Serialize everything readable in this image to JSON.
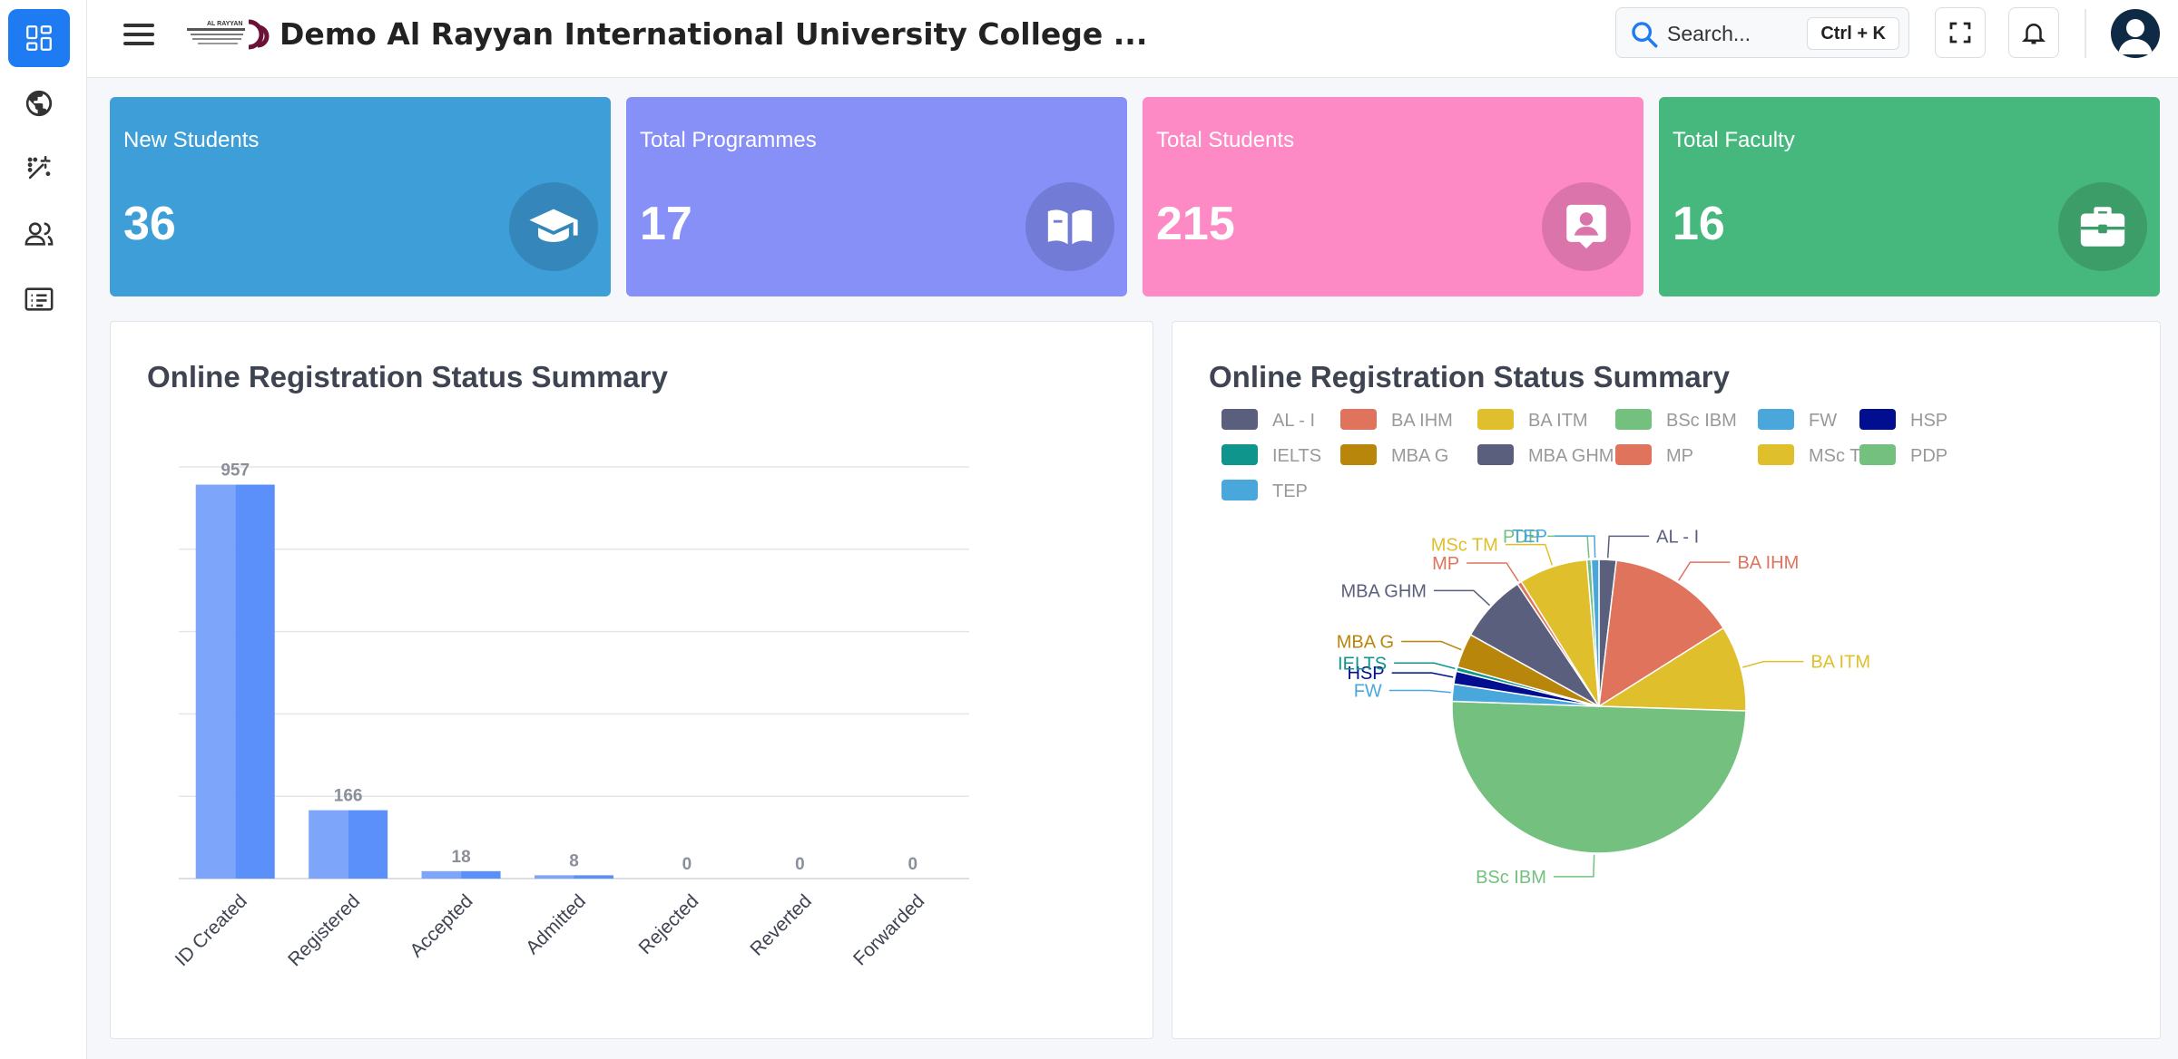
{
  "header": {
    "logo_text": "AL RAYYAN INTERNATIONAL UNIVERSITY COLLEGE",
    "title": "Demo Al Rayyan International University College ...",
    "search_placeholder": "Search...",
    "search_shortcut": "Ctrl + K"
  },
  "sidebar": {
    "items": [
      {
        "icon": "dashboard-icon",
        "active": true
      },
      {
        "icon": "globe-icon",
        "active": false
      },
      {
        "icon": "magic-wand-icon",
        "active": false
      },
      {
        "icon": "users-icon",
        "active": false
      },
      {
        "icon": "list-icon",
        "active": false
      }
    ]
  },
  "stats": [
    {
      "label": "New Students",
      "value": "36",
      "color": "#3e9fd8",
      "icon": "graduation-cap-icon"
    },
    {
      "label": "Total Programmes",
      "value": "17",
      "color": "#8790f6",
      "icon": "book-icon"
    },
    {
      "label": "Total Students",
      "value": "215",
      "color": "#fd89c5",
      "icon": "user-badge-icon"
    },
    {
      "label": "Total Faculty",
      "value": "16",
      "color": "#47b87d",
      "icon": "briefcase-icon"
    }
  ],
  "bar_panel": {
    "title": "Online Registration Status Summary"
  },
  "pie_panel": {
    "title": "Online Registration Status Summary"
  },
  "chart_data": [
    {
      "type": "bar",
      "title": "Online Registration Status Summary",
      "categories": [
        "ID Created",
        "Registered",
        "Accepted",
        "Admitted",
        "Rejected",
        "Reverted",
        "Forwarded"
      ],
      "values": [
        957,
        166,
        18,
        8,
        0,
        0,
        0
      ],
      "ylim": [
        0,
        1000
      ],
      "grid": true,
      "color": "#5b8ff9"
    },
    {
      "type": "pie",
      "title": "Online Registration Status Summary",
      "legend": "top",
      "slices": [
        {
          "label": "AL - I",
          "value": 2,
          "color": "#5a5f7d"
        },
        {
          "label": "BA IHM",
          "value": 15,
          "color": "#e0735c"
        },
        {
          "label": "BA ITM",
          "value": 10,
          "color": "#e0bf2c"
        },
        {
          "label": "BSc IBM",
          "value": 53,
          "color": "#73c07f"
        },
        {
          "label": "FW",
          "value": 2,
          "color": "#4aa7dc"
        },
        {
          "label": "HSP",
          "value": 1.5,
          "color": "#000e8f"
        },
        {
          "label": "IELTS",
          "value": 0.5,
          "color": "#0f958c"
        },
        {
          "label": "MBA G",
          "value": 4,
          "color": "#b8860b"
        },
        {
          "label": "MBA GHM",
          "value": 8,
          "color": "#5a5f7d"
        },
        {
          "label": "MP",
          "value": 0.5,
          "color": "#e0735c"
        },
        {
          "label": "MSc TM",
          "value": 8,
          "color": "#e0bf2c"
        },
        {
          "label": "PDP",
          "value": 0.5,
          "color": "#73c07f"
        },
        {
          "label": "TEP",
          "value": 0.9,
          "color": "#4aa7dc"
        }
      ]
    }
  ]
}
